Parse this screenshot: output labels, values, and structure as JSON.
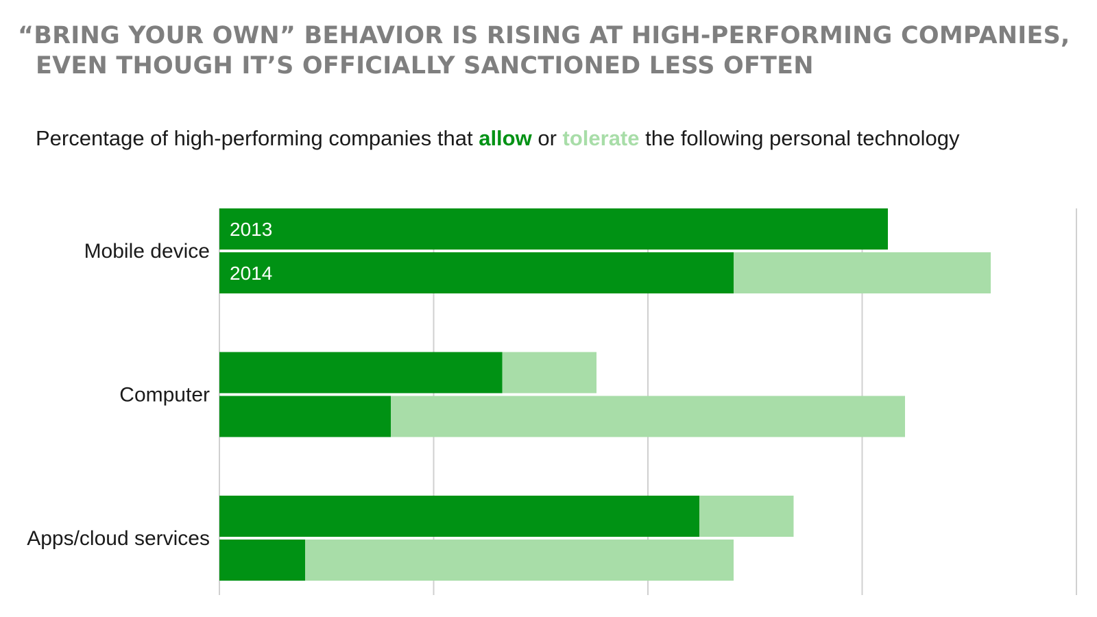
{
  "title": {
    "line1": "“BRING YOUR OWN” BEHAVIOR IS RISING AT HIGH-PERFORMING COMPANIES,",
    "line2": "EVEN THOUGH IT’S OFFICIALLY SANCTIONED LESS OFTEN"
  },
  "subtitle": {
    "before": "Percentage of high-performing companies that ",
    "allow": "allow",
    "middle": " or ",
    "tolerate": "tolerate",
    "after": " the following personal technology"
  },
  "colors": {
    "allow": "#009214",
    "tolerate": "#a8dda8",
    "grid": "#d0d0d0",
    "title": "#7f7f7f",
    "text": "#1a1a1a",
    "bar_label": "#ffffff"
  },
  "chart_data": {
    "type": "bar",
    "orientation": "horizontal",
    "stacked": true,
    "categories": [
      "Mobile device",
      "Computer",
      "Apps/cloud services"
    ],
    "years": [
      "2013",
      "2014"
    ],
    "series": [
      {
        "name": "allow",
        "values": [
          [
            78,
            60
          ],
          [
            33,
            20
          ],
          [
            56,
            10
          ]
        ]
      },
      {
        "name": "tolerate",
        "values": [
          [
            0,
            30
          ],
          [
            11,
            60
          ],
          [
            11,
            50
          ]
        ]
      }
    ],
    "xlim": [
      0,
      100
    ],
    "grid": true,
    "x_tick_labels_shown": false
  }
}
